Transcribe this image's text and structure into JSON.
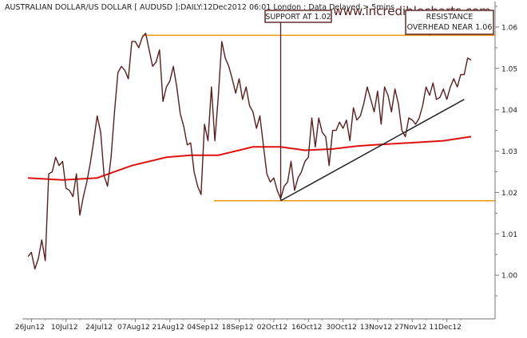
{
  "chart_data": {
    "type": "line",
    "title": "AUSTRALIAN DOLLAR/US DOLLAR [ AUDUSD ]:DAILY:12Dec2012 06:01 London : Data Delayed > 5mins",
    "watermark": "www.incrediblecharts.com",
    "xlabel": "",
    "ylabel": "",
    "ylim": [
      0.99,
      1.065
    ],
    "x_ticks": [
      "26Jun12",
      "10Jul12",
      "24Jul12",
      "07Aug12",
      "21Aug12",
      "04Sep12",
      "18Sep12",
      "02Oct12",
      "16Oct12",
      "30Oct12",
      "13Nov12",
      "27Nov12",
      "11Dec12"
    ],
    "y_ticks": [
      "1.00",
      "1.01",
      "1.02",
      "1.03",
      "1.04",
      "1.05",
      "1.06"
    ],
    "grid": false,
    "colors": {
      "price": "#5a1e1e",
      "moving_average": "#e01010",
      "levels": "#f0a020",
      "trendline": "#202020",
      "annotation": "#5a1e1e"
    },
    "series": [
      {
        "name": "",
        "values": [
          [
            0,
            1.0045
          ],
          [
            1,
            1.0055
          ],
          [
            2,
            1.0015
          ],
          [
            3,
            1.004
          ],
          [
            4,
            1.0085
          ],
          [
            5,
            1.0035
          ],
          [
            6,
            1.0245
          ],
          [
            7,
            1.025
          ],
          [
            8,
            1.0285
          ],
          [
            9,
            1.0265
          ],
          [
            10,
            1.0275
          ],
          [
            11,
            1.021
          ],
          [
            12,
            1.0205
          ],
          [
            13,
            1.019
          ],
          [
            14,
            1.0245
          ],
          [
            15,
            1.0145
          ],
          [
            16,
            1.019
          ],
          [
            17,
            1.0225
          ],
          [
            18,
            1.027
          ],
          [
            19,
            1.0325
          ],
          [
            20,
            1.0385
          ],
          [
            21,
            1.0345
          ],
          [
            22,
            1.024
          ],
          [
            23,
            1.0215
          ],
          [
            24,
            1.0285
          ],
          [
            25,
            1.0395
          ],
          [
            26,
            1.049
          ],
          [
            27,
            1.0505
          ],
          [
            28,
            1.0495
          ],
          [
            29,
            1.0475
          ],
          [
            30,
            1.0565
          ],
          [
            31,
            1.0565
          ],
          [
            32,
            1.055
          ],
          [
            33,
            1.0575
          ],
          [
            34,
            1.0585
          ],
          [
            35,
            1.0545
          ],
          [
            36,
            1.0505
          ],
          [
            37,
            1.0515
          ],
          [
            38,
            1.0545
          ],
          [
            39,
            1.042
          ],
          [
            40,
            1.0455
          ],
          [
            41,
            1.047
          ],
          [
            42,
            1.0505
          ],
          [
            43,
            1.0455
          ],
          [
            44,
            1.039
          ],
          [
            45,
            1.036
          ],
          [
            46,
            1.0315
          ],
          [
            47,
            1.032
          ],
          [
            48,
            1.025
          ],
          [
            49,
            1.0215
          ],
          [
            50,
            1.0195
          ],
          [
            51,
            1.0365
          ],
          [
            52,
            1.0325
          ],
          [
            53,
            1.0455
          ],
          [
            54,
            1.0325
          ],
          [
            55,
            1.0435
          ],
          [
            56,
            1.0565
          ],
          [
            57,
            1.0525
          ],
          [
            58,
            1.0505
          ],
          [
            59,
            1.0475
          ],
          [
            60,
            1.044
          ],
          [
            61,
            1.0475
          ],
          [
            62,
            1.0425
          ],
          [
            63,
            1.0455
          ],
          [
            64,
            1.041
          ],
          [
            65,
            1.0395
          ],
          [
            66,
            1.0355
          ],
          [
            67,
            1.0385
          ],
          [
            68,
            1.0315
          ],
          [
            69,
            1.0245
          ],
          [
            70,
            1.0225
          ],
          [
            71,
            1.0235
          ],
          [
            72,
            1.0205
          ],
          [
            73,
            1.0185
          ],
          [
            74,
            1.0215
          ],
          [
            75,
            1.0225
          ],
          [
            76,
            1.0275
          ],
          [
            77,
            1.0205
          ],
          [
            78,
            1.0235
          ],
          [
            79,
            1.025
          ],
          [
            80,
            1.0275
          ],
          [
            81,
            1.0285
          ],
          [
            82,
            1.038
          ],
          [
            83,
            1.031
          ],
          [
            84,
            1.038
          ],
          [
            85,
            1.0345
          ],
          [
            86,
            1.0335
          ],
          [
            87,
            1.0265
          ],
          [
            88,
            1.035
          ],
          [
            89,
            1.035
          ],
          [
            90,
            1.037
          ],
          [
            91,
            1.0355
          ],
          [
            92,
            1.0375
          ],
          [
            93,
            1.0325
          ],
          [
            94,
            1.0405
          ],
          [
            95,
            1.0375
          ],
          [
            96,
            1.0385
          ],
          [
            97,
            1.0415
          ],
          [
            98,
            1.0455
          ],
          [
            99,
            1.0425
          ],
          [
            100,
            1.0395
          ],
          [
            101,
            1.0445
          ],
          [
            102,
            1.0365
          ],
          [
            103,
            1.0455
          ],
          [
            104,
            1.0435
          ],
          [
            105,
            1.0395
          ],
          [
            106,
            1.045
          ],
          [
            107,
            1.0415
          ],
          [
            108,
            1.035
          ],
          [
            109,
            1.0335
          ],
          [
            110,
            1.038
          ],
          [
            111,
            1.0375
          ],
          [
            112,
            1.0365
          ],
          [
            113,
            1.038
          ],
          [
            114,
            1.041
          ],
          [
            115,
            1.0455
          ],
          [
            116,
            1.0435
          ],
          [
            117,
            1.0465
          ],
          [
            118,
            1.0425
          ],
          [
            119,
            1.043
          ],
          [
            120,
            1.045
          ],
          [
            121,
            1.0425
          ],
          [
            122,
            1.0455
          ],
          [
            123,
            1.0475
          ],
          [
            124,
            1.0455
          ],
          [
            125,
            1.0485
          ],
          [
            126,
            1.0485
          ],
          [
            127,
            1.0525
          ],
          [
            128,
            1.052
          ]
        ]
      },
      {
        "name": "",
        "values": [
          [
            0,
            1.0235
          ],
          [
            10,
            1.023
          ],
          [
            20,
            1.0235
          ],
          [
            30,
            1.0265
          ],
          [
            40,
            1.0285
          ],
          [
            47,
            1.029
          ],
          [
            55,
            1.029
          ],
          [
            65,
            1.031
          ],
          [
            73,
            1.031
          ],
          [
            80,
            1.0302
          ],
          [
            88,
            1.0305
          ],
          [
            95,
            1.0312
          ],
          [
            100,
            1.0315
          ],
          [
            110,
            1.032
          ],
          [
            120,
            1.0325
          ],
          [
            128,
            1.0335
          ]
        ]
      }
    ],
    "resistance_level": 1.058,
    "support_level": 1.018,
    "trendline": {
      "from": [
        73,
        1.018
      ],
      "to": [
        126,
        1.0425
      ]
    },
    "annotations": [
      {
        "text": "SUPPORT AT 1.02",
        "target": [
          73,
          1.018
        ]
      },
      {
        "text_lines": [
          "RESISTANCE",
          "OVERHEAD NEAR 1.06"
        ],
        "target": [
          116,
          1.058
        ]
      }
    ]
  }
}
